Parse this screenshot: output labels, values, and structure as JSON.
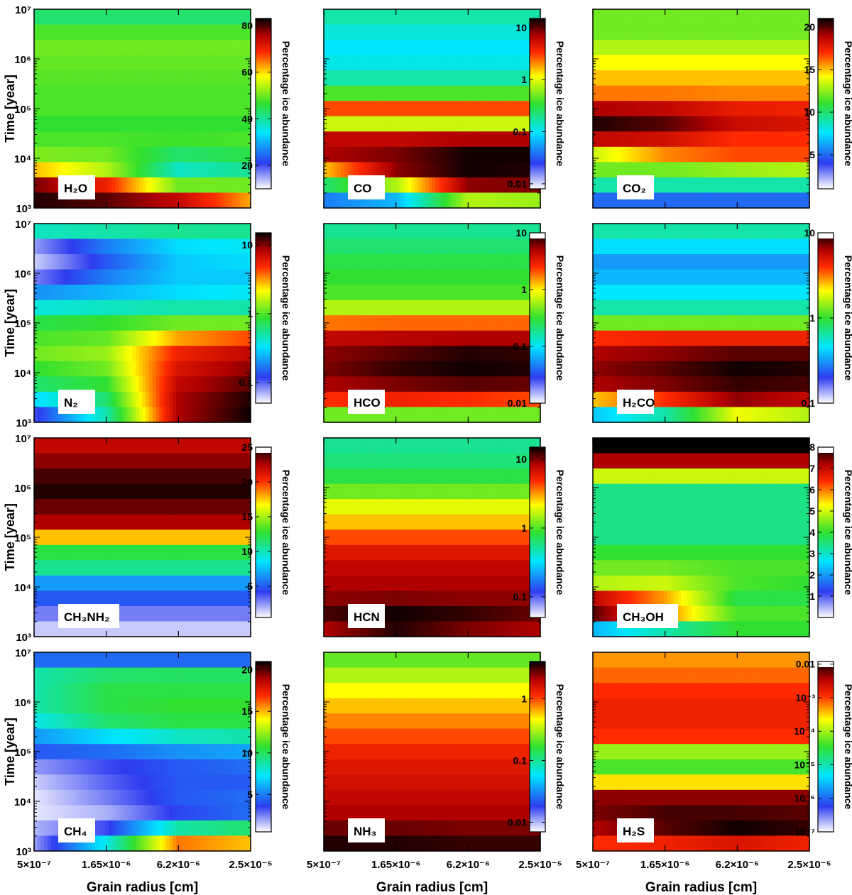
{
  "figure": {
    "ylabel": "Time [year]",
    "xlabel": "Grain radius [cm]",
    "colorbar_label": "Percentage ice abundance",
    "x_ticks": [
      "5×10⁻⁷",
      "1.65×10⁻⁶",
      "6.2×10⁻⁶",
      "2.5×10⁻⁵"
    ],
    "y_ticks": [
      "10³",
      "10⁴",
      "10⁵",
      "10⁶",
      "10⁷"
    ]
  },
  "chart_data": [
    {
      "type": "heatmap",
      "label": "H₂O",
      "xlim": [
        5e-07,
        2.5e-05
      ],
      "ylim": [
        1000,
        10000000
      ],
      "yscale": "log",
      "colorbar": {
        "scale": "linear",
        "range": [
          10,
          83
        ],
        "ticks": [
          "20",
          "40",
          "60",
          "80"
        ],
        "top_white": false
      },
      "rows": [
        [
          0.45,
          0.45,
          0.45,
          0.45
        ],
        [
          0.52,
          0.52,
          0.52,
          0.52
        ],
        [
          0.55,
          0.55,
          0.55,
          0.55
        ],
        [
          0.54,
          0.54,
          0.54,
          0.54
        ],
        [
          0.53,
          0.53,
          0.53,
          0.53
        ],
        [
          0.52,
          0.52,
          0.52,
          0.52
        ],
        [
          0.52,
          0.52,
          0.52,
          0.52
        ],
        [
          0.5,
          0.5,
          0.5,
          0.5
        ],
        [
          0.52,
          0.52,
          0.51,
          0.52
        ],
        [
          0.56,
          0.55,
          0.45,
          0.48
        ],
        [
          0.7,
          0.6,
          0.38,
          0.42
        ],
        [
          0.93,
          0.82,
          0.55,
          0.55
        ],
        [
          0.98,
          0.95,
          0.88,
          0.72
        ]
      ]
    },
    {
      "type": "heatmap",
      "label": "CO",
      "xlim": [
        5e-07,
        2.5e-05
      ],
      "ylim": [
        1000,
        10000000
      ],
      "yscale": "log",
      "colorbar": {
        "scale": "log",
        "range": [
          0.008,
          15
        ],
        "ticks": [
          "0.01",
          "0.1",
          "1",
          "10"
        ],
        "top_white": false
      },
      "rows": [
        [
          0.4,
          0.4,
          0.4,
          0.4
        ],
        [
          0.36,
          0.36,
          0.36,
          0.36
        ],
        [
          0.33,
          0.33,
          0.33,
          0.33
        ],
        [
          0.35,
          0.35,
          0.35,
          0.35
        ],
        [
          0.4,
          0.4,
          0.4,
          0.4
        ],
        [
          0.52,
          0.52,
          0.52,
          0.52
        ],
        [
          0.78,
          0.78,
          0.78,
          0.78
        ],
        [
          0.62,
          0.62,
          0.62,
          0.62
        ],
        [
          0.88,
          0.88,
          0.9,
          0.9
        ],
        [
          0.9,
          0.93,
          0.99,
          0.99
        ],
        [
          0.7,
          0.92,
          0.99,
          0.98
        ],
        [
          0.45,
          0.6,
          0.92,
          0.93
        ],
        [
          0.22,
          0.28,
          0.6,
          0.58
        ]
      ]
    },
    {
      "type": "heatmap",
      "label": "CO₂",
      "xlim": [
        5e-07,
        2.5e-05
      ],
      "ylim": [
        1000,
        10000000
      ],
      "yscale": "log",
      "colorbar": {
        "scale": "linear",
        "range": [
          1,
          21
        ],
        "ticks": [
          "5",
          "10",
          "15",
          "20"
        ],
        "top_white": false
      },
      "rows": [
        [
          0.55,
          0.55,
          0.55,
          0.55
        ],
        [
          0.55,
          0.55,
          0.55,
          0.55
        ],
        [
          0.6,
          0.6,
          0.6,
          0.6
        ],
        [
          0.66,
          0.66,
          0.66,
          0.66
        ],
        [
          0.7,
          0.7,
          0.7,
          0.7
        ],
        [
          0.75,
          0.75,
          0.74,
          0.74
        ],
        [
          0.9,
          0.88,
          0.83,
          0.82
        ],
        [
          0.98,
          0.95,
          0.87,
          0.85
        ],
        [
          0.88,
          0.86,
          0.8,
          0.8
        ],
        [
          0.62,
          0.74,
          0.78,
          0.78
        ],
        [
          0.55,
          0.55,
          0.58,
          0.6
        ],
        [
          0.4,
          0.4,
          0.4,
          0.4
        ],
        [
          0.2,
          0.2,
          0.2,
          0.2
        ]
      ]
    },
    {
      "type": "heatmap",
      "label": "N₂",
      "xlim": [
        5e-07,
        2.5e-05
      ],
      "ylim": [
        1000,
        10000000
      ],
      "yscale": "log",
      "colorbar": {
        "scale": "log",
        "range": [
          0.05,
          15
        ],
        "ticks": [
          "0.1",
          "1",
          "10"
        ],
        "top_white": false
      },
      "rows": [
        [
          0.38,
          0.4,
          0.42,
          0.42
        ],
        [
          0.08,
          0.22,
          0.32,
          0.34
        ],
        [
          0.04,
          0.18,
          0.3,
          0.32
        ],
        [
          0.1,
          0.22,
          0.3,
          0.3
        ],
        [
          0.24,
          0.28,
          0.32,
          0.34
        ],
        [
          0.36,
          0.38,
          0.4,
          0.4
        ],
        [
          0.48,
          0.5,
          0.55,
          0.55
        ],
        [
          0.52,
          0.54,
          0.72,
          0.78
        ],
        [
          0.55,
          0.58,
          0.82,
          0.88
        ],
        [
          0.5,
          0.55,
          0.85,
          0.92
        ],
        [
          0.45,
          0.5,
          0.88,
          0.95
        ],
        [
          0.32,
          0.45,
          0.9,
          0.98
        ],
        [
          0.14,
          0.4,
          0.9,
          0.99
        ]
      ]
    },
    {
      "type": "heatmap",
      "label": "HCO",
      "xlim": [
        5e-07,
        2.5e-05
      ],
      "ylim": [
        1000,
        10000000
      ],
      "yscale": "log",
      "colorbar": {
        "scale": "log",
        "range": [
          0.01,
          10
        ],
        "ticks": [
          "0.01",
          "0.1",
          "1",
          "10"
        ],
        "top_white": true
      },
      "rows": [
        [
          0.42,
          0.42,
          0.42,
          0.42
        ],
        [
          0.45,
          0.45,
          0.45,
          0.45
        ],
        [
          0.48,
          0.48,
          0.48,
          0.48
        ],
        [
          0.5,
          0.5,
          0.5,
          0.5
        ],
        [
          0.52,
          0.52,
          0.52,
          0.52
        ],
        [
          0.6,
          0.6,
          0.6,
          0.6
        ],
        [
          0.75,
          0.76,
          0.76,
          0.76
        ],
        [
          0.88,
          0.89,
          0.9,
          0.9
        ],
        [
          0.92,
          0.95,
          0.98,
          0.97
        ],
        [
          0.93,
          0.97,
          0.99,
          0.98
        ],
        [
          0.9,
          0.93,
          0.95,
          0.94
        ],
        [
          0.8,
          0.82,
          0.8,
          0.78
        ],
        [
          0.55,
          0.55,
          0.55,
          0.55
        ]
      ]
    },
    {
      "type": "heatmap",
      "label": "H₂CO",
      "xlim": [
        5e-07,
        2.5e-05
      ],
      "ylim": [
        1000,
        10000000
      ],
      "yscale": "log",
      "colorbar": {
        "scale": "log",
        "range": [
          0.1,
          10
        ],
        "ticks": [
          "0.1",
          "1",
          "10"
        ],
        "top_white": true
      },
      "rows": [
        [
          0.4,
          0.4,
          0.4,
          0.4
        ],
        [
          0.32,
          0.32,
          0.32,
          0.32
        ],
        [
          0.25,
          0.25,
          0.25,
          0.25
        ],
        [
          0.28,
          0.28,
          0.28,
          0.28
        ],
        [
          0.33,
          0.33,
          0.33,
          0.33
        ],
        [
          0.4,
          0.4,
          0.4,
          0.4
        ],
        [
          0.55,
          0.55,
          0.55,
          0.55
        ],
        [
          0.8,
          0.82,
          0.82,
          0.82
        ],
        [
          0.9,
          0.92,
          0.95,
          0.95
        ],
        [
          0.92,
          0.95,
          0.99,
          0.98
        ],
        [
          0.9,
          0.93,
          0.97,
          0.96
        ],
        [
          0.7,
          0.8,
          0.92,
          0.88
        ],
        [
          0.3,
          0.4,
          0.65,
          0.6
        ]
      ]
    },
    {
      "type": "heatmap",
      "label": "CH₃NH₂",
      "xlim": [
        5e-07,
        2.5e-05
      ],
      "ylim": [
        1000,
        10000000
      ],
      "yscale": "log",
      "colorbar": {
        "scale": "linear",
        "range": [
          0.5,
          25
        ],
        "ticks": [
          "5",
          "10",
          "15",
          "20",
          "25"
        ],
        "top_white": true
      },
      "rows": [
        [
          0.88,
          0.88,
          0.88,
          0.88
        ],
        [
          0.92,
          0.92,
          0.92,
          0.92
        ],
        [
          0.96,
          0.96,
          0.96,
          0.96
        ],
        [
          0.98,
          0.98,
          0.98,
          0.98
        ],
        [
          0.94,
          0.94,
          0.94,
          0.94
        ],
        [
          0.9,
          0.9,
          0.9,
          0.9
        ],
        [
          0.7,
          0.7,
          0.7,
          0.7
        ],
        [
          0.48,
          0.48,
          0.48,
          0.48
        ],
        [
          0.42,
          0.42,
          0.42,
          0.42
        ],
        [
          0.25,
          0.25,
          0.25,
          0.25
        ],
        [
          0.18,
          0.18,
          0.18,
          0.18
        ],
        [
          0.1,
          0.1,
          0.1,
          0.1
        ],
        [
          0.04,
          0.04,
          0.04,
          0.04
        ]
      ]
    },
    {
      "type": "heatmap",
      "label": "HCN",
      "xlim": [
        5e-07,
        2.5e-05
      ],
      "ylim": [
        1000,
        10000000
      ],
      "yscale": "log",
      "colorbar": {
        "scale": "log",
        "range": [
          0.05,
          15
        ],
        "ticks": [
          "0.1",
          "1",
          "10"
        ],
        "top_white": false
      },
      "rows": [
        [
          0.42,
          0.42,
          0.42,
          0.42
        ],
        [
          0.44,
          0.44,
          0.44,
          0.44
        ],
        [
          0.48,
          0.48,
          0.48,
          0.48
        ],
        [
          0.55,
          0.55,
          0.55,
          0.55
        ],
        [
          0.64,
          0.64,
          0.64,
          0.64
        ],
        [
          0.7,
          0.7,
          0.7,
          0.7
        ],
        [
          0.78,
          0.78,
          0.78,
          0.78
        ],
        [
          0.84,
          0.84,
          0.84,
          0.84
        ],
        [
          0.88,
          0.88,
          0.88,
          0.88
        ],
        [
          0.9,
          0.9,
          0.9,
          0.9
        ],
        [
          0.92,
          0.93,
          0.92,
          0.92
        ],
        [
          0.96,
          0.99,
          0.97,
          0.94
        ],
        [
          0.9,
          0.98,
          0.93,
          0.9
        ]
      ]
    },
    {
      "type": "heatmap",
      "label": "CH₃OH",
      "xlim": [
        5e-07,
        2.5e-05
      ],
      "ylim": [
        1000,
        10000000
      ],
      "yscale": "log",
      "colorbar": {
        "scale": "linear",
        "range": [
          0,
          8
        ],
        "ticks": [
          "1",
          "2",
          "3",
          "4",
          "5",
          "6",
          "7",
          "8"
        ],
        "top_white": true
      },
      "rows": [
        [
          1.0,
          1.0,
          1.0,
          1.0
        ],
        [
          0.9,
          0.9,
          0.9,
          0.9
        ],
        [
          0.62,
          0.62,
          0.62,
          0.62
        ],
        [
          0.43,
          0.43,
          0.43,
          0.43
        ],
        [
          0.43,
          0.43,
          0.43,
          0.43
        ],
        [
          0.43,
          0.43,
          0.43,
          0.43
        ],
        [
          0.43,
          0.43,
          0.43,
          0.43
        ],
        [
          0.5,
          0.5,
          0.5,
          0.5
        ],
        [
          0.55,
          0.55,
          0.52,
          0.52
        ],
        [
          0.6,
          0.62,
          0.52,
          0.5
        ],
        [
          0.88,
          0.72,
          0.48,
          0.48
        ],
        [
          0.95,
          0.75,
          0.52,
          0.52
        ],
        [
          0.28,
          0.4,
          0.5,
          0.5
        ]
      ]
    },
    {
      "type": "heatmap",
      "label": "CH₄",
      "xlim": [
        5e-07,
        2.5e-05
      ],
      "ylim": [
        1000,
        10000000
      ],
      "yscale": "log",
      "colorbar": {
        "scale": "linear",
        "range": [
          0.5,
          21
        ],
        "ticks": [
          "5",
          "10",
          "15",
          "20"
        ],
        "top_white": false
      },
      "rows": [
        [
          0.2,
          0.2,
          0.2,
          0.2
        ],
        [
          0.4,
          0.45,
          0.46,
          0.46
        ],
        [
          0.4,
          0.48,
          0.48,
          0.48
        ],
        [
          0.4,
          0.48,
          0.5,
          0.5
        ],
        [
          0.35,
          0.45,
          0.48,
          0.48
        ],
        [
          0.25,
          0.32,
          0.38,
          0.4
        ],
        [
          0.18,
          0.2,
          0.24,
          0.26
        ],
        [
          0.08,
          0.14,
          0.18,
          0.2
        ],
        [
          0.04,
          0.12,
          0.18,
          0.18
        ],
        [
          0.02,
          0.1,
          0.18,
          0.2
        ],
        [
          0.02,
          0.06,
          0.16,
          0.2
        ],
        [
          0.06,
          0.14,
          0.4,
          0.45
        ],
        [
          0.08,
          0.35,
          0.75,
          0.7
        ]
      ]
    },
    {
      "type": "heatmap",
      "label": "NH₃",
      "xlim": [
        5e-07,
        2.5e-05
      ],
      "ylim": [
        1000,
        10000000
      ],
      "yscale": "log",
      "colorbar": {
        "scale": "log",
        "range": [
          0.007,
          4
        ],
        "ticks": [
          "0.01",
          "0.1",
          "1"
        ],
        "top_white": false
      },
      "rows": [
        [
          0.54,
          0.54,
          0.54,
          0.54
        ],
        [
          0.6,
          0.6,
          0.6,
          0.6
        ],
        [
          0.66,
          0.66,
          0.66,
          0.66
        ],
        [
          0.7,
          0.7,
          0.7,
          0.7
        ],
        [
          0.74,
          0.74,
          0.74,
          0.74
        ],
        [
          0.78,
          0.78,
          0.78,
          0.78
        ],
        [
          0.82,
          0.82,
          0.82,
          0.82
        ],
        [
          0.84,
          0.84,
          0.84,
          0.84
        ],
        [
          0.86,
          0.86,
          0.86,
          0.86
        ],
        [
          0.88,
          0.88,
          0.88,
          0.88
        ],
        [
          0.9,
          0.9,
          0.9,
          0.9
        ],
        [
          0.94,
          0.94,
          0.93,
          0.93
        ],
        [
          0.98,
          0.98,
          0.97,
          0.97
        ]
      ]
    },
    {
      "type": "heatmap",
      "label": "H₂S",
      "xlim": [
        5e-07,
        2.5e-05
      ],
      "ylim": [
        1000,
        10000000
      ],
      "yscale": "log",
      "colorbar": {
        "scale": "log",
        "range": [
          1e-07,
          0.012
        ],
        "ticks": [
          "10⁻⁷",
          "10⁻⁶",
          "10⁻⁵",
          "10⁻⁴",
          "10⁻³",
          "0.01"
        ],
        "top_white": true
      },
      "rows": [
        [
          0.73,
          0.73,
          0.73,
          0.73
        ],
        [
          0.76,
          0.76,
          0.76,
          0.76
        ],
        [
          0.8,
          0.8,
          0.8,
          0.8
        ],
        [
          0.82,
          0.82,
          0.82,
          0.82
        ],
        [
          0.82,
          0.82,
          0.82,
          0.82
        ],
        [
          0.8,
          0.8,
          0.8,
          0.8
        ],
        [
          0.58,
          0.58,
          0.58,
          0.58
        ],
        [
          0.52,
          0.52,
          0.52,
          0.52
        ],
        [
          0.68,
          0.68,
          0.68,
          0.68
        ],
        [
          0.92,
          0.92,
          0.92,
          0.92
        ],
        [
          0.93,
          0.96,
          0.96,
          0.95
        ],
        [
          0.9,
          0.95,
          0.99,
          0.97
        ],
        [
          0.8,
          0.82,
          0.85,
          0.82
        ]
      ]
    }
  ]
}
